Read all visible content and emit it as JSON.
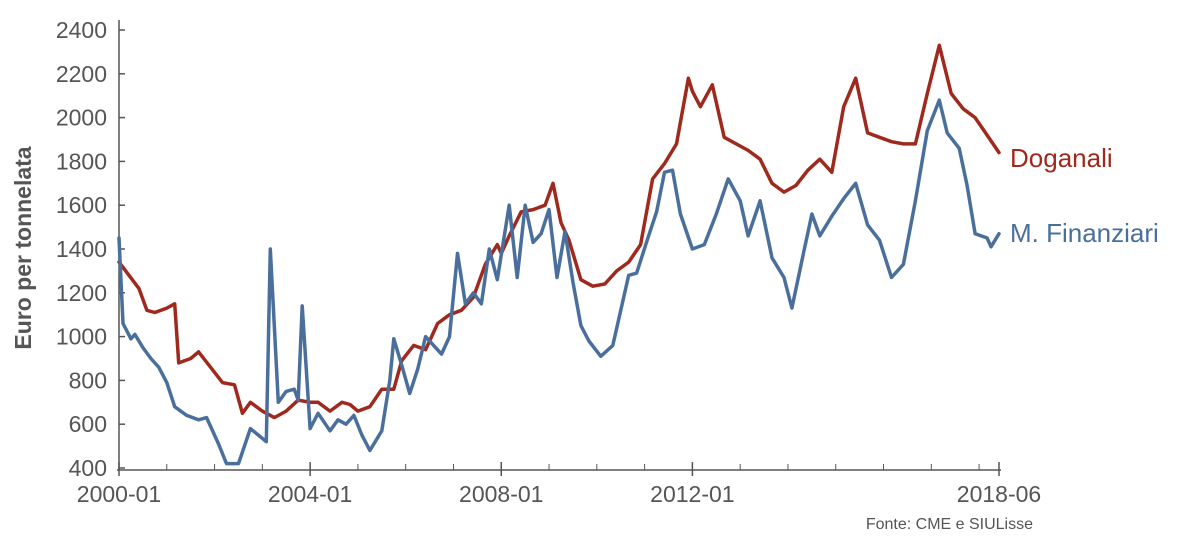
{
  "chart_data": {
    "type": "line",
    "ylabel": "Euro per tonnelata",
    "ylim": [
      400,
      2400
    ],
    "yticks": [
      400,
      600,
      800,
      1000,
      1200,
      1400,
      1600,
      1800,
      2000,
      2200,
      2400
    ],
    "xlim": [
      "2000-01",
      "2018-06"
    ],
    "xticks": [
      "2000-01",
      "2004-01",
      "2008-01",
      "2012-01",
      "2018-06"
    ],
    "source": "Fonte: CME e SIULisse",
    "grid": false,
    "legend": "inline labels at right end of each series",
    "colors": {
      "Doganali": "#a0291d",
      "M. Finanziari": "#4a6f9c",
      "axis": "#555555"
    },
    "series": [
      {
        "name": "Doganali",
        "points": [
          [
            "2000-01",
            1340
          ],
          [
            "2000-06",
            1220
          ],
          [
            "2000-08",
            1120
          ],
          [
            "2000-10",
            1110
          ],
          [
            "2001-01",
            1130
          ],
          [
            "2001-03",
            1150
          ],
          [
            "2001-04",
            880
          ],
          [
            "2001-07",
            900
          ],
          [
            "2001-09",
            930
          ],
          [
            "2001-12",
            860
          ],
          [
            "2002-03",
            790
          ],
          [
            "2002-06",
            780
          ],
          [
            "2002-08",
            650
          ],
          [
            "2002-10",
            700
          ],
          [
            "2003-01",
            660
          ],
          [
            "2003-04",
            630
          ],
          [
            "2003-07",
            660
          ],
          [
            "2003-10",
            710
          ],
          [
            "2004-01",
            700
          ],
          [
            "2004-03",
            700
          ],
          [
            "2004-06",
            660
          ],
          [
            "2004-09",
            700
          ],
          [
            "2004-11",
            690
          ],
          [
            "2005-01",
            660
          ],
          [
            "2005-04",
            680
          ],
          [
            "2005-07",
            760
          ],
          [
            "2005-10",
            760
          ],
          [
            "2005-12",
            890
          ],
          [
            "2006-03",
            960
          ],
          [
            "2006-06",
            940
          ],
          [
            "2006-09",
            1060
          ],
          [
            "2006-12",
            1100
          ],
          [
            "2007-03",
            1120
          ],
          [
            "2007-06",
            1180
          ],
          [
            "2007-09",
            1330
          ],
          [
            "2007-12",
            1420
          ],
          [
            "2008-01",
            1380
          ],
          [
            "2008-03",
            1460
          ],
          [
            "2008-06",
            1570
          ],
          [
            "2008-09",
            1580
          ],
          [
            "2008-12",
            1600
          ],
          [
            "2009-02",
            1700
          ],
          [
            "2009-04",
            1520
          ],
          [
            "2009-06",
            1440
          ],
          [
            "2009-09",
            1260
          ],
          [
            "2009-12",
            1230
          ],
          [
            "2010-03",
            1240
          ],
          [
            "2010-06",
            1300
          ],
          [
            "2010-09",
            1340
          ],
          [
            "2010-12",
            1420
          ],
          [
            "2011-03",
            1720
          ],
          [
            "2011-06",
            1790
          ],
          [
            "2011-09",
            1880
          ],
          [
            "2011-12",
            2180
          ],
          [
            "2012-01",
            2120
          ],
          [
            "2012-03",
            2050
          ],
          [
            "2012-06",
            2150
          ],
          [
            "2012-09",
            1910
          ],
          [
            "2012-12",
            1880
          ],
          [
            "2013-03",
            1850
          ],
          [
            "2013-06",
            1810
          ],
          [
            "2013-09",
            1700
          ],
          [
            "2013-12",
            1660
          ],
          [
            "2014-03",
            1690
          ],
          [
            "2014-06",
            1760
          ],
          [
            "2014-09",
            1810
          ],
          [
            "2014-12",
            1750
          ],
          [
            "2015-03",
            2050
          ],
          [
            "2015-06",
            2180
          ],
          [
            "2015-09",
            1930
          ],
          [
            "2015-12",
            1910
          ],
          [
            "2016-03",
            1890
          ],
          [
            "2016-06",
            1880
          ],
          [
            "2016-09",
            1880
          ],
          [
            "2016-12",
            2110
          ],
          [
            "2017-03",
            2330
          ],
          [
            "2017-06",
            2110
          ],
          [
            "2017-09",
            2040
          ],
          [
            "2017-12",
            2000
          ],
          [
            "2018-03",
            1920
          ],
          [
            "2018-06",
            1840
          ]
        ]
      },
      {
        "name": "M. Finanziari",
        "points": [
          [
            "2000-01",
            1450
          ],
          [
            "2000-02",
            1060
          ],
          [
            "2000-04",
            990
          ],
          [
            "2000-05",
            1010
          ],
          [
            "2000-07",
            950
          ],
          [
            "2000-09",
            900
          ],
          [
            "2000-11",
            860
          ],
          [
            "2001-01",
            790
          ],
          [
            "2001-03",
            680
          ],
          [
            "2001-06",
            640
          ],
          [
            "2001-09",
            620
          ],
          [
            "2001-11",
            630
          ],
          [
            "2002-02",
            510
          ],
          [
            "2002-04",
            420
          ],
          [
            "2002-07",
            420
          ],
          [
            "2002-10",
            580
          ],
          [
            "2002-12",
            550
          ],
          [
            "2003-02",
            520
          ],
          [
            "2003-03",
            1400
          ],
          [
            "2003-05",
            700
          ],
          [
            "2003-07",
            750
          ],
          [
            "2003-09",
            760
          ],
          [
            "2003-10",
            710
          ],
          [
            "2003-11",
            1140
          ],
          [
            "2004-01",
            580
          ],
          [
            "2004-03",
            650
          ],
          [
            "2004-06",
            570
          ],
          [
            "2004-08",
            620
          ],
          [
            "2004-10",
            600
          ],
          [
            "2004-12",
            640
          ],
          [
            "2005-02",
            550
          ],
          [
            "2005-04",
            480
          ],
          [
            "2005-07",
            570
          ],
          [
            "2005-09",
            800
          ],
          [
            "2005-10",
            990
          ],
          [
            "2005-12",
            870
          ],
          [
            "2006-02",
            740
          ],
          [
            "2006-04",
            850
          ],
          [
            "2006-06",
            1000
          ],
          [
            "2006-08",
            960
          ],
          [
            "2006-10",
            920
          ],
          [
            "2006-12",
            1000
          ],
          [
            "2007-02",
            1380
          ],
          [
            "2007-04",
            1150
          ],
          [
            "2007-06",
            1200
          ],
          [
            "2007-08",
            1150
          ],
          [
            "2007-10",
            1400
          ],
          [
            "2007-12",
            1260
          ],
          [
            "2008-03",
            1600
          ],
          [
            "2008-05",
            1270
          ],
          [
            "2008-07",
            1600
          ],
          [
            "2008-09",
            1430
          ],
          [
            "2008-11",
            1470
          ],
          [
            "2009-01",
            1580
          ],
          [
            "2009-03",
            1270
          ],
          [
            "2009-05",
            1480
          ],
          [
            "2009-07",
            1250
          ],
          [
            "2009-09",
            1050
          ],
          [
            "2009-11",
            980
          ],
          [
            "2010-02",
            910
          ],
          [
            "2010-05",
            960
          ],
          [
            "2010-09",
            1280
          ],
          [
            "2010-11",
            1290
          ],
          [
            "2011-02",
            1460
          ],
          [
            "2011-04",
            1570
          ],
          [
            "2011-06",
            1750
          ],
          [
            "2011-08",
            1760
          ],
          [
            "2011-10",
            1560
          ],
          [
            "2012-01",
            1400
          ],
          [
            "2012-04",
            1420
          ],
          [
            "2012-07",
            1560
          ],
          [
            "2012-10",
            1720
          ],
          [
            "2013-01",
            1620
          ],
          [
            "2013-03",
            1460
          ],
          [
            "2013-06",
            1620
          ],
          [
            "2013-09",
            1360
          ],
          [
            "2013-12",
            1270
          ],
          [
            "2014-02",
            1130
          ],
          [
            "2014-05",
            1390
          ],
          [
            "2014-07",
            1560
          ],
          [
            "2014-09",
            1460
          ],
          [
            "2014-12",
            1550
          ],
          [
            "2015-03",
            1630
          ],
          [
            "2015-06",
            1700
          ],
          [
            "2015-09",
            1510
          ],
          [
            "2015-12",
            1440
          ],
          [
            "2016-03",
            1270
          ],
          [
            "2016-06",
            1330
          ],
          [
            "2016-09",
            1620
          ],
          [
            "2016-12",
            1940
          ],
          [
            "2017-03",
            2080
          ],
          [
            "2017-05",
            1930
          ],
          [
            "2017-08",
            1860
          ],
          [
            "2017-10",
            1690
          ],
          [
            "2017-12",
            1470
          ],
          [
            "2018-03",
            1450
          ],
          [
            "2018-04",
            1410
          ],
          [
            "2018-06",
            1470
          ]
        ]
      }
    ]
  }
}
